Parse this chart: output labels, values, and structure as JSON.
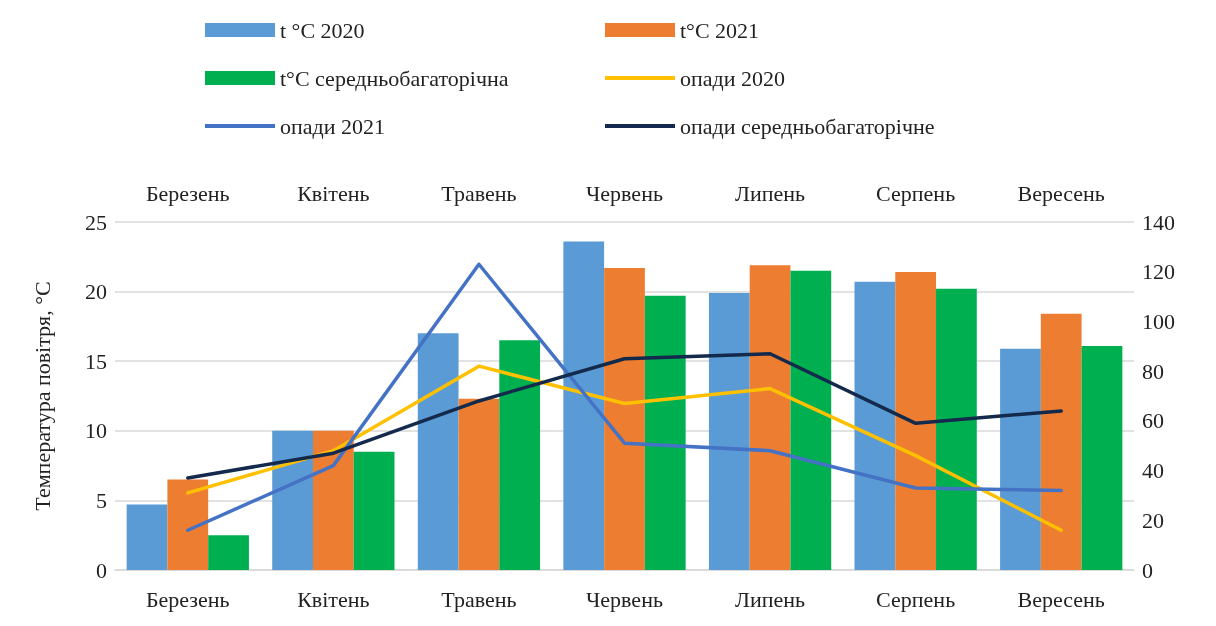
{
  "chart_data": {
    "type": "bar",
    "ylabel": "Температура повітря, °С",
    "categories": [
      "Березень",
      "Квітень",
      "Травень",
      "Червень",
      "Липень",
      "Серпень",
      "Вересень"
    ],
    "series": [
      {
        "name": "t °C 2020",
        "color": "#5b9bd5",
        "values": [
          4.7,
          10.0,
          17.0,
          23.6,
          19.9,
          20.7,
          15.9
        ]
      },
      {
        "name": "t°C 2021",
        "color": "#ed7d31",
        "values": [
          6.5,
          10.0,
          12.3,
          21.7,
          21.9,
          21.4,
          18.4
        ]
      },
      {
        "name": "t°C середньобагаторічна",
        "color": "#00b050",
        "values": [
          2.5,
          8.5,
          16.5,
          19.7,
          21.5,
          20.2,
          16.1
        ]
      },
      {
        "name": "опади 2020",
        "type": "line",
        "axis": "y2",
        "color": "#ffc000",
        "values": [
          31,
          48,
          82,
          67,
          73,
          46,
          16
        ]
      },
      {
        "name": "опади 2021",
        "type": "line",
        "axis": "y2",
        "color": "#4472c4",
        "values": [
          16,
          42,
          123,
          51,
          48,
          33,
          32
        ]
      },
      {
        "name": "опади середньобагаторічне",
        "type": "line",
        "axis": "y2",
        "color": "#132a4c",
        "values": [
          37,
          47,
          68,
          85,
          87,
          59,
          64
        ]
      }
    ],
    "ylim": [
      0,
      25
    ],
    "yticks": [
      0,
      5,
      10,
      15,
      20,
      25
    ],
    "y2lim": [
      0,
      140
    ],
    "y2ticks": [
      0,
      20,
      40,
      60,
      80,
      100,
      120,
      140
    ],
    "grid": "y",
    "legend": "top",
    "marker": "none",
    "line_style": "solid"
  }
}
